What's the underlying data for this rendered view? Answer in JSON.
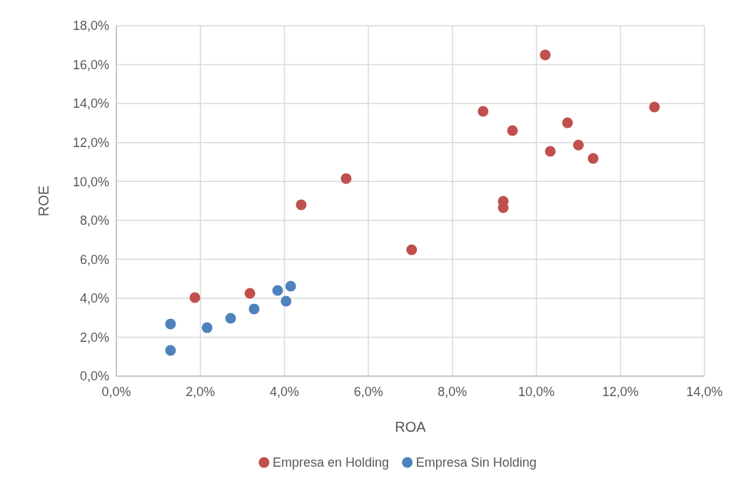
{
  "chart_data": {
    "type": "scatter",
    "xlabel": "ROA",
    "ylabel": "ROE",
    "xlim": [
      0,
      14
    ],
    "ylim": [
      0,
      18
    ],
    "xticks": [
      {
        "value": 0,
        "label": "0,0%"
      },
      {
        "value": 2,
        "label": "2,0%"
      },
      {
        "value": 4,
        "label": "4,0%"
      },
      {
        "value": 6,
        "label": "6,0%"
      },
      {
        "value": 8,
        "label": "8,0%"
      },
      {
        "value": 10,
        "label": "10,0%"
      },
      {
        "value": 12,
        "label": "12,0%"
      },
      {
        "value": 14,
        "label": "14,0%"
      }
    ],
    "yticks": [
      {
        "value": 0,
        "label": "0,0%"
      },
      {
        "value": 2,
        "label": "2,0%"
      },
      {
        "value": 4,
        "label": "4,0%"
      },
      {
        "value": 6,
        "label": "6,0%"
      },
      {
        "value": 8,
        "label": "8,0%"
      },
      {
        "value": 10,
        "label": "10,0%"
      },
      {
        "value": 12,
        "label": "12,0%"
      },
      {
        "value": 14,
        "label": "14,0%"
      },
      {
        "value": 16,
        "label": "16,0%"
      },
      {
        "value": 18,
        "label": "18,0%"
      }
    ],
    "grid": true,
    "legend": "bottom",
    "marker": "circle",
    "series": [
      {
        "name": "Empresa en Holding",
        "color": "#c0504d",
        "x": [
          1.87,
          3.18,
          4.4,
          5.47,
          7.03,
          8.73,
          9.43,
          9.21,
          9.21,
          10.21,
          10.33,
          10.74,
          11.0,
          11.35,
          12.81
        ],
        "values": [
          4.03,
          4.25,
          8.8,
          10.15,
          6.49,
          13.6,
          12.61,
          8.98,
          8.65,
          16.5,
          11.55,
          13.01,
          11.87,
          11.18,
          13.82
        ]
      },
      {
        "name": "Empresa Sin Holding",
        "color": "#4f81bd",
        "x": [
          1.29,
          1.29,
          2.16,
          2.72,
          3.28,
          3.84,
          4.15,
          4.04
        ],
        "values": [
          2.68,
          1.32,
          2.49,
          2.97,
          3.45,
          4.4,
          4.62,
          3.85
        ]
      }
    ]
  }
}
